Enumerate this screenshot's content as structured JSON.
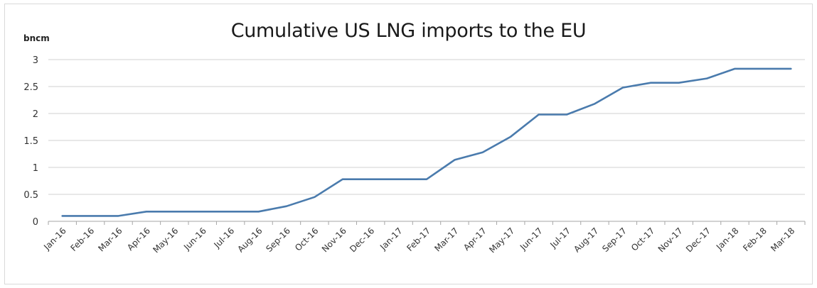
{
  "chart_data": {
    "type": "line",
    "title": "Cumulative US LNG imports to the EU",
    "ylabel": "bncm",
    "xlabel": "",
    "ylim": [
      0,
      3
    ],
    "yticks": [
      "0",
      "0.5",
      "1",
      "1.5",
      "2",
      "2.5",
      "3"
    ],
    "grid": true,
    "line_color": "#4a7bad",
    "categories": [
      "Jan-16",
      "Feb-16",
      "Mar-16",
      "Apr-16",
      "May-16",
      "Jun-16",
      "Jul-16",
      "Aug-16",
      "Sep-16",
      "Oct-16",
      "Nov-16",
      "Dec-16",
      "Jan-17",
      "Feb-17",
      "Mar-17",
      "Apr-17",
      "May-17",
      "Jun-17",
      "Jul-17",
      "Aug-17",
      "Sep-17",
      "Oct-17",
      "Nov-17",
      "Dec-17",
      "Jan-18",
      "Feb-18",
      "Mar-18"
    ],
    "series": [
      {
        "values": [
          0.1,
          0.1,
          0.1,
          0.18,
          0.18,
          0.18,
          0.18,
          0.18,
          0.28,
          0.45,
          0.78,
          0.78,
          0.78,
          0.78,
          1.14,
          1.28,
          1.57,
          1.98,
          1.98,
          2.18,
          2.48,
          2.57,
          2.57,
          2.65,
          2.83,
          2.83,
          2.83
        ]
      }
    ]
  }
}
